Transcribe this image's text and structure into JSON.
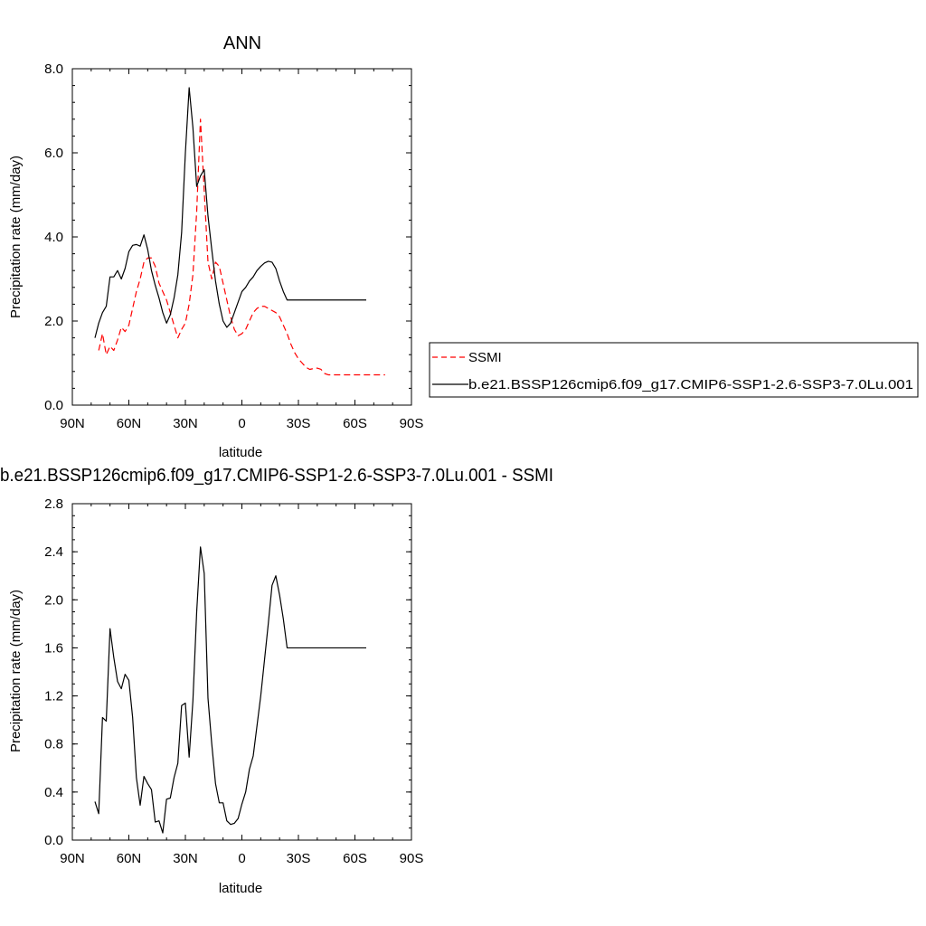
{
  "chart_data": [
    {
      "type": "line",
      "title": "ANN",
      "xlabel": "latitude",
      "ylabel": "Precipitation rate (mm/day)",
      "xlim": [
        -90,
        90
      ],
      "ylim": [
        0,
        8
      ],
      "xticks": [
        -90,
        -60,
        -30,
        0,
        30,
        60,
        90
      ],
      "xtick_labels": [
        "90N",
        "60N",
        "30N",
        "0",
        "30S",
        "60S",
        "90S"
      ],
      "yticks": [
        0,
        2,
        4,
        6,
        8
      ],
      "ytick_labels": [
        "0.0",
        "2.0",
        "4.0",
        "6.0",
        "8.0"
      ],
      "grid": false,
      "legend_position": "right",
      "series": [
        {
          "name": "SSMI",
          "color": "#ff0000",
          "dash": "dashed",
          "x": [
            -76,
            -74,
            -72,
            -70,
            -68,
            -66,
            -64,
            -62,
            -60,
            -58,
            -56,
            -54,
            -52,
            -50,
            -48,
            -46,
            -44,
            -42,
            -40,
            -38,
            -36,
            -34,
            -32,
            -30,
            -28,
            -26,
            -24,
            -22,
            -20,
            -18,
            -16,
            -14,
            -12,
            -10,
            -8,
            -6,
            -4,
            -2,
            0,
            2,
            4,
            6,
            8,
            10,
            12,
            14,
            16,
            18,
            20,
            22,
            24,
            26,
            28,
            30,
            32,
            34,
            36,
            38,
            40,
            42,
            44,
            46,
            48,
            50,
            52,
            54,
            56,
            58,
            60,
            62,
            64,
            66,
            68,
            70,
            72,
            74,
            76
          ],
          "y": [
            1.3,
            1.7,
            1.2,
            1.4,
            1.3,
            1.55,
            1.85,
            1.75,
            1.9,
            2.3,
            2.7,
            3.0,
            3.4,
            3.5,
            3.5,
            3.3,
            2.9,
            2.7,
            2.5,
            2.2,
            1.9,
            1.6,
            1.8,
            1.95,
            2.4,
            3.1,
            4.6,
            6.8,
            5.1,
            3.4,
            3.0,
            3.4,
            3.3,
            2.9,
            2.5,
            2.1,
            1.8,
            1.65,
            1.7,
            1.8,
            2.0,
            2.2,
            2.3,
            2.35,
            2.35,
            2.3,
            2.25,
            2.2,
            2.1,
            1.9,
            1.7,
            1.45,
            1.25,
            1.1,
            1.0,
            0.9,
            0.85,
            0.87,
            0.88,
            0.85,
            0.75,
            0.72,
            0.72,
            0.72,
            0.72,
            0.72,
            0.72,
            0.72,
            0.72,
            0.72,
            0.72,
            0.72,
            0.72,
            0.72,
            0.72,
            0.72,
            0.72
          ]
        },
        {
          "name": "b.e21.BSSP126cmip6.f09_g17.CMIP6-SSP1-2.6-SSP3-7.0Lu.001",
          "color": "#000000",
          "dash": "solid",
          "x": [
            -78,
            -76,
            -74,
            -72,
            -70,
            -68,
            -66,
            -64,
            -62,
            -60,
            -58,
            -56,
            -54,
            -52,
            -50,
            -48,
            -46,
            -44,
            -42,
            -40,
            -38,
            -36,
            -34,
            -32,
            -30,
            -28,
            -26,
            -24,
            -22,
            -20,
            -18,
            -16,
            -14,
            -12,
            -10,
            -8,
            -6,
            -4,
            -2,
            0,
            2,
            4,
            6,
            8,
            10,
            12,
            14,
            16,
            18,
            20,
            22,
            24,
            26,
            28,
            30,
            32,
            34,
            36,
            38,
            40,
            42,
            44,
            46,
            48,
            50,
            52,
            54,
            56,
            58,
            60,
            62,
            64,
            66
          ],
          "y": [
            1.6,
            1.95,
            2.2,
            2.35,
            3.05,
            3.05,
            3.2,
            3.0,
            3.25,
            3.65,
            3.8,
            3.82,
            3.78,
            4.05,
            3.7,
            3.2,
            2.85,
            2.55,
            2.2,
            1.95,
            2.15,
            2.55,
            3.1,
            4.1,
            6.0,
            7.55,
            6.6,
            5.2,
            5.45,
            5.6,
            4.5,
            3.7,
            2.95,
            2.4,
            2.0,
            1.85,
            1.95,
            2.2,
            2.45,
            2.7,
            2.8,
            2.95,
            3.05,
            3.2,
            3.3,
            3.38,
            3.42,
            3.4,
            3.25,
            2.95,
            2.7,
            2.5,
            2.5,
            2.5,
            2.5,
            2.5,
            2.5,
            2.5,
            2.5,
            2.5,
            2.5,
            2.5,
            2.5,
            2.5,
            2.5,
            2.5,
            2.5,
            2.5,
            2.5,
            2.5,
            2.5,
            2.5,
            2.5
          ]
        }
      ]
    },
    {
      "type": "line",
      "title": "b.e21.BSSP126cmip6.f09_g17.CMIP6-SSP1-2.6-SSP3-7.0Lu.001 - SSMI",
      "xlabel": "latitude",
      "ylabel": "Precipitation rate (mm/day)",
      "xlim": [
        -90,
        90
      ],
      "ylim": [
        0,
        2.8
      ],
      "xticks": [
        -90,
        -60,
        -30,
        0,
        30,
        60,
        90
      ],
      "xtick_labels": [
        "90N",
        "60N",
        "30N",
        "0",
        "30S",
        "60S",
        "90S"
      ],
      "yticks": [
        0,
        0.4,
        0.8,
        1.2,
        1.6,
        2.0,
        2.4,
        2.8
      ],
      "ytick_labels": [
        "0.0",
        "0.4",
        "0.8",
        "1.2",
        "1.6",
        "2.0",
        "2.4",
        "2.8"
      ],
      "grid": false,
      "series": [
        {
          "name": "",
          "color": "#000000",
          "dash": "solid",
          "x": [
            -78,
            -76,
            -74,
            -72,
            -70,
            -68,
            -66,
            -64,
            -62,
            -60,
            -58,
            -56,
            -54,
            -52,
            -50,
            -48,
            -46,
            -44,
            -42,
            -40,
            -38,
            -36,
            -34,
            -32,
            -30,
            -28,
            -26,
            -24,
            -22,
            -20,
            -18,
            -16,
            -14,
            -12,
            -10,
            -8,
            -6,
            -4,
            -2,
            0,
            2,
            4,
            6,
            8,
            10,
            12,
            14,
            16,
            18,
            20,
            22,
            24,
            26,
            28,
            30,
            32,
            34,
            36,
            38,
            40,
            42,
            44,
            46,
            48,
            50,
            52,
            54,
            56,
            58,
            60,
            62,
            64,
            66
          ],
          "y": [
            0.32,
            0.22,
            1.02,
            0.99,
            1.76,
            1.52,
            1.32,
            1.26,
            1.38,
            1.33,
            1.02,
            0.52,
            0.29,
            0.53,
            0.47,
            0.42,
            0.15,
            0.16,
            0.06,
            0.34,
            0.35,
            0.52,
            0.64,
            1.12,
            1.14,
            0.69,
            1.16,
            1.9,
            2.44,
            2.22,
            1.18,
            0.8,
            0.47,
            0.31,
            0.31,
            0.16,
            0.13,
            0.14,
            0.18,
            0.3,
            0.4,
            0.59,
            0.7,
            0.95,
            1.2,
            1.5,
            1.8,
            2.12,
            2.2,
            2.04,
            1.84,
            1.6,
            1.6,
            1.6,
            1.6,
            1.6,
            1.6,
            1.6,
            1.6,
            1.6,
            1.6,
            1.6,
            1.6,
            1.6,
            1.6,
            1.6,
            1.6,
            1.6,
            1.6,
            1.6,
            1.6,
            1.6,
            1.6
          ]
        }
      ]
    }
  ]
}
